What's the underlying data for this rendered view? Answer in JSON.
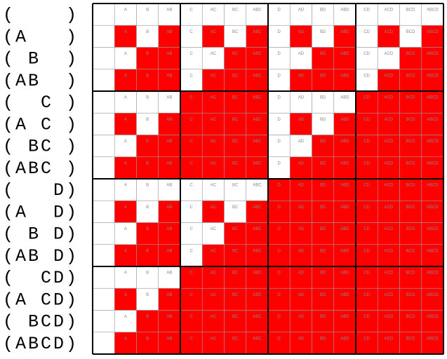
{
  "row_labels": [
    "(    )",
    "(A   )",
    "( B  )",
    "(AB  )",
    "(  C )",
    "(A C )",
    "( BC )",
    "(ABC )",
    "(   D)",
    "(A  D)",
    "( B D)",
    "(AB D)",
    "(  CD)",
    "(A CD)",
    "( BCD)",
    "(ABCD)"
  ],
  "cell_labels": [
    null,
    "A",
    "B",
    "AB",
    "C",
    "AC",
    "BC",
    "ABC",
    "D",
    "AD",
    "BD",
    "ABD",
    "CD",
    "ACD",
    "BCD",
    "ABCD"
  ],
  "colors": [
    "#ffffff",
    "#ff0000"
  ],
  "grid": [
    [
      0,
      0,
      0,
      0,
      0,
      0,
      0,
      0,
      0,
      0,
      0,
      0,
      0,
      0,
      0,
      0
    ],
    [
      0,
      1,
      0,
      1,
      0,
      1,
      0,
      1,
      0,
      1,
      0,
      1,
      0,
      1,
      0,
      1
    ],
    [
      0,
      0,
      1,
      1,
      0,
      0,
      1,
      1,
      0,
      0,
      1,
      1,
      0,
      0,
      1,
      1
    ],
    [
      0,
      1,
      1,
      1,
      0,
      1,
      1,
      1,
      0,
      1,
      1,
      1,
      0,
      1,
      1,
      1
    ],
    [
      0,
      0,
      0,
      0,
      1,
      1,
      1,
      1,
      0,
      0,
      0,
      0,
      1,
      1,
      1,
      1
    ],
    [
      0,
      1,
      0,
      1,
      1,
      1,
      1,
      1,
      0,
      1,
      0,
      1,
      1,
      1,
      1,
      1
    ],
    [
      0,
      0,
      1,
      1,
      1,
      1,
      1,
      1,
      0,
      0,
      1,
      1,
      1,
      1,
      1,
      1
    ],
    [
      0,
      1,
      1,
      1,
      1,
      1,
      1,
      1,
      0,
      1,
      1,
      1,
      1,
      1,
      1,
      1
    ],
    [
      0,
      0,
      0,
      0,
      0,
      0,
      0,
      0,
      1,
      1,
      1,
      1,
      1,
      1,
      1,
      1
    ],
    [
      0,
      1,
      0,
      1,
      0,
      1,
      0,
      1,
      1,
      1,
      1,
      1,
      1,
      1,
      1,
      1
    ],
    [
      0,
      0,
      1,
      1,
      0,
      0,
      1,
      1,
      1,
      1,
      1,
      1,
      1,
      1,
      1,
      1
    ],
    [
      0,
      1,
      1,
      1,
      0,
      1,
      1,
      1,
      1,
      1,
      1,
      1,
      1,
      1,
      1,
      1
    ],
    [
      0,
      0,
      0,
      0,
      1,
      1,
      1,
      1,
      1,
      1,
      1,
      1,
      1,
      1,
      1,
      1
    ],
    [
      0,
      1,
      0,
      1,
      1,
      1,
      1,
      1,
      1,
      1,
      1,
      1,
      1,
      1,
      1,
      1
    ],
    [
      0,
      0,
      1,
      1,
      1,
      1,
      1,
      1,
      1,
      1,
      1,
      1,
      1,
      1,
      1,
      1
    ],
    [
      0,
      1,
      1,
      1,
      1,
      1,
      1,
      1,
      1,
      1,
      1,
      1,
      1,
      1,
      1,
      1
    ]
  ]
}
